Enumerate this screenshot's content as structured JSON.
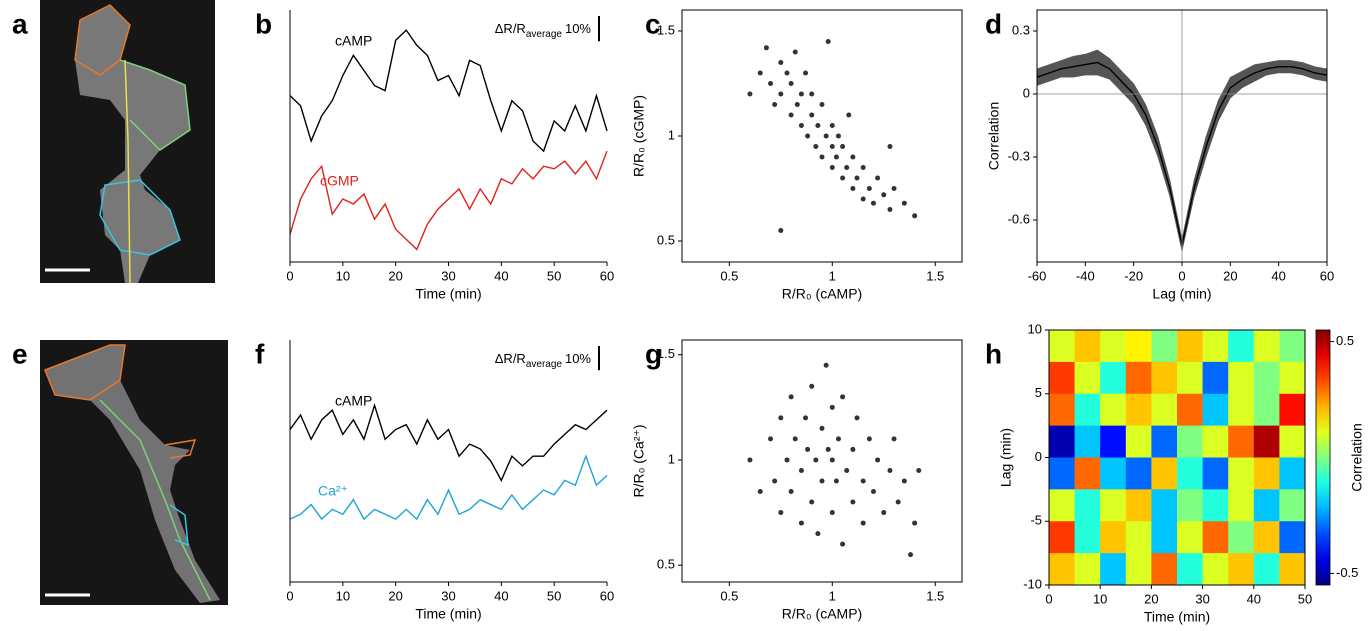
{
  "chart_data": [
    {
      "type": "image",
      "label": "a"
    },
    {
      "type": "line",
      "label": "b",
      "x_label": "Time (min)",
      "x": [
        0,
        2,
        4,
        6,
        8,
        10,
        12,
        14,
        16,
        18,
        20,
        22,
        24,
        26,
        28,
        30,
        32,
        34,
        36,
        38,
        40,
        42,
        44,
        46,
        48,
        50,
        52,
        54,
        56,
        58,
        60
      ],
      "xlim": [
        0,
        60
      ],
      "xticks": [
        0,
        10,
        20,
        30,
        40,
        50,
        60
      ],
      "ylim": [
        0,
        100
      ],
      "series": [
        {
          "name": "cAMP",
          "color": "#000000",
          "values": [
            66,
            62,
            48,
            58,
            64,
            74,
            82,
            76,
            70,
            68,
            88,
            92,
            86,
            82,
            72,
            74,
            66,
            80,
            78,
            64,
            52,
            64,
            60,
            48,
            44,
            56,
            52,
            62,
            52,
            66,
            52
          ]
        },
        {
          "name": "cGMP",
          "color": "#e0201b",
          "values": [
            11,
            25,
            33,
            38,
            19,
            25,
            23,
            27,
            17,
            23,
            13,
            9,
            5,
            15,
            21,
            25,
            29,
            21,
            29,
            23,
            33,
            31,
            37,
            33,
            38,
            37,
            40,
            35,
            40,
            33,
            44
          ]
        }
      ],
      "scale_bar": {
        "value": 10,
        "label": "10%",
        "quantity": "ΔR/R",
        "subscript": "average"
      }
    },
    {
      "type": "scatter",
      "label": "c",
      "x_label": "R/R₀ (cAMP)",
      "y_label": "R/R₀ (cGMP)",
      "color": "#333333",
      "xlim": [
        0.27,
        1.63
      ],
      "xticks": [
        0.5,
        1,
        1.5
      ],
      "ylim": [
        0.4,
        1.6
      ],
      "yticks": [
        0.5,
        1,
        1.5
      ],
      "x": [
        0.6,
        0.65,
        0.68,
        0.7,
        0.72,
        0.75,
        0.75,
        0.78,
        0.8,
        0.8,
        0.82,
        0.83,
        0.85,
        0.85,
        0.87,
        0.88,
        0.9,
        0.9,
        0.92,
        0.93,
        0.95,
        0.95,
        0.97,
        0.98,
        1.0,
        1.0,
        1.0,
        1.02,
        1.03,
        1.05,
        1.05,
        1.07,
        1.08,
        1.1,
        1.1,
        1.12,
        1.15,
        1.15,
        1.18,
        1.2,
        1.22,
        1.25,
        1.28,
        1.3,
        1.35,
        1.4,
        0.75,
        1.28
      ],
      "values": [
        1.2,
        1.3,
        1.42,
        1.25,
        1.15,
        1.35,
        1.2,
        1.3,
        1.1,
        1.25,
        1.4,
        1.15,
        1.05,
        1.2,
        1.3,
        1.0,
        1.1,
        1.2,
        0.95,
        1.05,
        1.15,
        0.9,
        1.0,
        1.45,
        0.95,
        1.05,
        0.85,
        0.9,
        1.0,
        0.8,
        0.95,
        0.85,
        1.1,
        0.75,
        0.9,
        0.8,
        0.7,
        0.85,
        0.75,
        0.68,
        0.8,
        0.72,
        0.65,
        0.75,
        0.68,
        0.62,
        0.55,
        0.95
      ]
    },
    {
      "type": "line",
      "label": "d",
      "x_label": "Lag (min)",
      "y_label": "Correlation",
      "x": [
        -60,
        -55,
        -50,
        -45,
        -40,
        -35,
        -30,
        -25,
        -20,
        -15,
        -10,
        -5,
        0,
        5,
        10,
        15,
        20,
        25,
        30,
        35,
        40,
        45,
        50,
        55,
        60
      ],
      "xlim": [
        -60,
        60
      ],
      "xticks": [
        -60,
        -40,
        -20,
        0,
        20,
        40,
        60
      ],
      "ylim": [
        -0.8,
        0.4
      ],
      "yticks": [
        0.3,
        0,
        -0.3,
        -0.6
      ],
      "ref_x": 0,
      "ref_y": 0,
      "series": [
        {
          "color": "#000000",
          "band_color": "#555555",
          "values": [
            0.08,
            0.1,
            0.12,
            0.13,
            0.14,
            0.15,
            0.12,
            0.06,
            0.0,
            -0.1,
            -0.25,
            -0.45,
            -0.72,
            -0.45,
            -0.25,
            -0.08,
            0.03,
            0.07,
            0.1,
            0.12,
            0.13,
            0.13,
            0.12,
            0.1,
            0.09
          ],
          "errors": [
            0.04,
            0.04,
            0.04,
            0.05,
            0.05,
            0.06,
            0.05,
            0.05,
            0.05,
            0.05,
            0.05,
            0.04,
            0.03,
            0.04,
            0.05,
            0.05,
            0.05,
            0.04,
            0.04,
            0.03,
            0.03,
            0.03,
            0.03,
            0.03,
            0.03
          ]
        }
      ]
    },
    {
      "type": "image",
      "label": "e"
    },
    {
      "type": "line",
      "label": "f",
      "x_label": "Time (min)",
      "x": [
        0,
        2,
        4,
        6,
        8,
        10,
        12,
        14,
        16,
        18,
        20,
        22,
        24,
        26,
        28,
        30,
        32,
        34,
        36,
        38,
        40,
        42,
        44,
        46,
        48,
        50,
        52,
        54,
        56,
        58,
        60
      ],
      "xlim": [
        0,
        60
      ],
      "xticks": [
        0,
        10,
        20,
        30,
        40,
        50,
        60
      ],
      "ylim": [
        0,
        100
      ],
      "series": [
        {
          "name": "cAMP",
          "color": "#000000",
          "values": [
            63,
            69,
            59,
            67,
            71,
            61,
            67,
            59,
            73,
            59,
            63,
            65,
            57,
            67,
            59,
            63,
            52,
            57,
            55,
            50,
            42,
            52,
            48,
            52,
            52,
            57,
            61,
            65,
            63,
            67,
            71
          ]
        },
        {
          "name": "Ca²⁺",
          "color": "#1ba3d6",
          "values": [
            26,
            28,
            32,
            26,
            30,
            28,
            34,
            26,
            30,
            28,
            26,
            30,
            26,
            34,
            28,
            38,
            28,
            30,
            34,
            32,
            30,
            36,
            30,
            34,
            38,
            36,
            42,
            40,
            52,
            40,
            44
          ]
        }
      ],
      "scale_bar": {
        "value": 10,
        "label": "10%",
        "quantity": "ΔR/R",
        "subscript": "average"
      }
    },
    {
      "type": "scatter",
      "label": "g",
      "x_label": "R/R₀ (cAMP)",
      "y_label": "R/R₀ (Ca²⁺)",
      "color": "#333333",
      "xlim": [
        0.27,
        1.63
      ],
      "xticks": [
        0.5,
        1,
        1.5
      ],
      "ylim": [
        0.42,
        1.57
      ],
      "yticks": [
        0.5,
        1,
        1.5
      ],
      "x": [
        0.6,
        0.65,
        0.7,
        0.72,
        0.75,
        0.75,
        0.78,
        0.8,
        0.8,
        0.82,
        0.85,
        0.85,
        0.87,
        0.88,
        0.9,
        0.9,
        0.92,
        0.93,
        0.95,
        0.95,
        0.97,
        0.98,
        1.0,
        1.0,
        1.0,
        1.02,
        1.03,
        1.05,
        1.05,
        1.07,
        1.1,
        1.1,
        1.12,
        1.15,
        1.15,
        1.18,
        1.2,
        1.22,
        1.25,
        1.28,
        1.3,
        1.32,
        1.35,
        1.4,
        1.42,
        1.38
      ],
      "values": [
        1.0,
        0.85,
        1.1,
        0.9,
        1.2,
        0.75,
        1.0,
        1.3,
        0.85,
        1.1,
        0.7,
        0.95,
        1.2,
        1.05,
        0.8,
        1.35,
        1.0,
        0.65,
        1.15,
        0.9,
        1.45,
        1.05,
        0.75,
        1.0,
        1.25,
        0.9,
        1.1,
        0.6,
        1.3,
        0.95,
        1.05,
        0.8,
        1.2,
        0.9,
        0.7,
        1.1,
        0.85,
        1.0,
        0.75,
        0.95,
        1.1,
        0.8,
        0.9,
        0.7,
        0.95,
        0.55
      ]
    },
    {
      "type": "heatmap",
      "label": "h",
      "x_label": "Time (min)",
      "y_label": "Lag (min)",
      "colorbar_label": "Correlation",
      "colormap": "jet",
      "xlim": [
        0,
        50
      ],
      "xticks": [
        0,
        10,
        20,
        30,
        40,
        50
      ],
      "ylim": [
        -10,
        10
      ],
      "yticks": [
        10,
        5,
        0,
        -5,
        -10
      ],
      "clim": [
        -0.55,
        0.55
      ],
      "cticks": [
        0.5,
        -0.5
      ],
      "x_edges": [
        0,
        5,
        10,
        15,
        20,
        25,
        30,
        35,
        40,
        45,
        50
      ],
      "y_edges": [
        10,
        7.5,
        5,
        2.5,
        0,
        -2.5,
        -5,
        -7.5,
        -10
      ],
      "values": [
        [
          0.1,
          0.2,
          0.1,
          0.15,
          0.0,
          0.2,
          0.1,
          -0.1,
          0.1,
          0.0
        ],
        [
          0.35,
          0.1,
          -0.1,
          0.3,
          0.2,
          0.1,
          -0.3,
          0.1,
          0.0,
          0.1
        ],
        [
          0.3,
          -0.1,
          0.1,
          0.2,
          0.1,
          0.3,
          -0.2,
          0.1,
          0.0,
          0.4
        ],
        [
          -0.5,
          -0.2,
          -0.4,
          0.1,
          -0.3,
          0.0,
          0.1,
          0.3,
          0.5,
          0.1
        ],
        [
          -0.3,
          0.3,
          -0.2,
          -0.3,
          0.2,
          -0.1,
          -0.3,
          0.1,
          0.2,
          -0.2
        ],
        [
          0.1,
          -0.1,
          0.1,
          0.2,
          -0.2,
          0.0,
          -0.1,
          0.1,
          -0.2,
          0.0
        ],
        [
          0.35,
          -0.1,
          0.2,
          0.1,
          -0.2,
          0.1,
          0.3,
          0.0,
          0.2,
          -0.3
        ],
        [
          0.2,
          0.1,
          -0.2,
          0.1,
          0.3,
          -0.1,
          0.1,
          0.2,
          -0.1,
          0.2
        ]
      ]
    }
  ]
}
